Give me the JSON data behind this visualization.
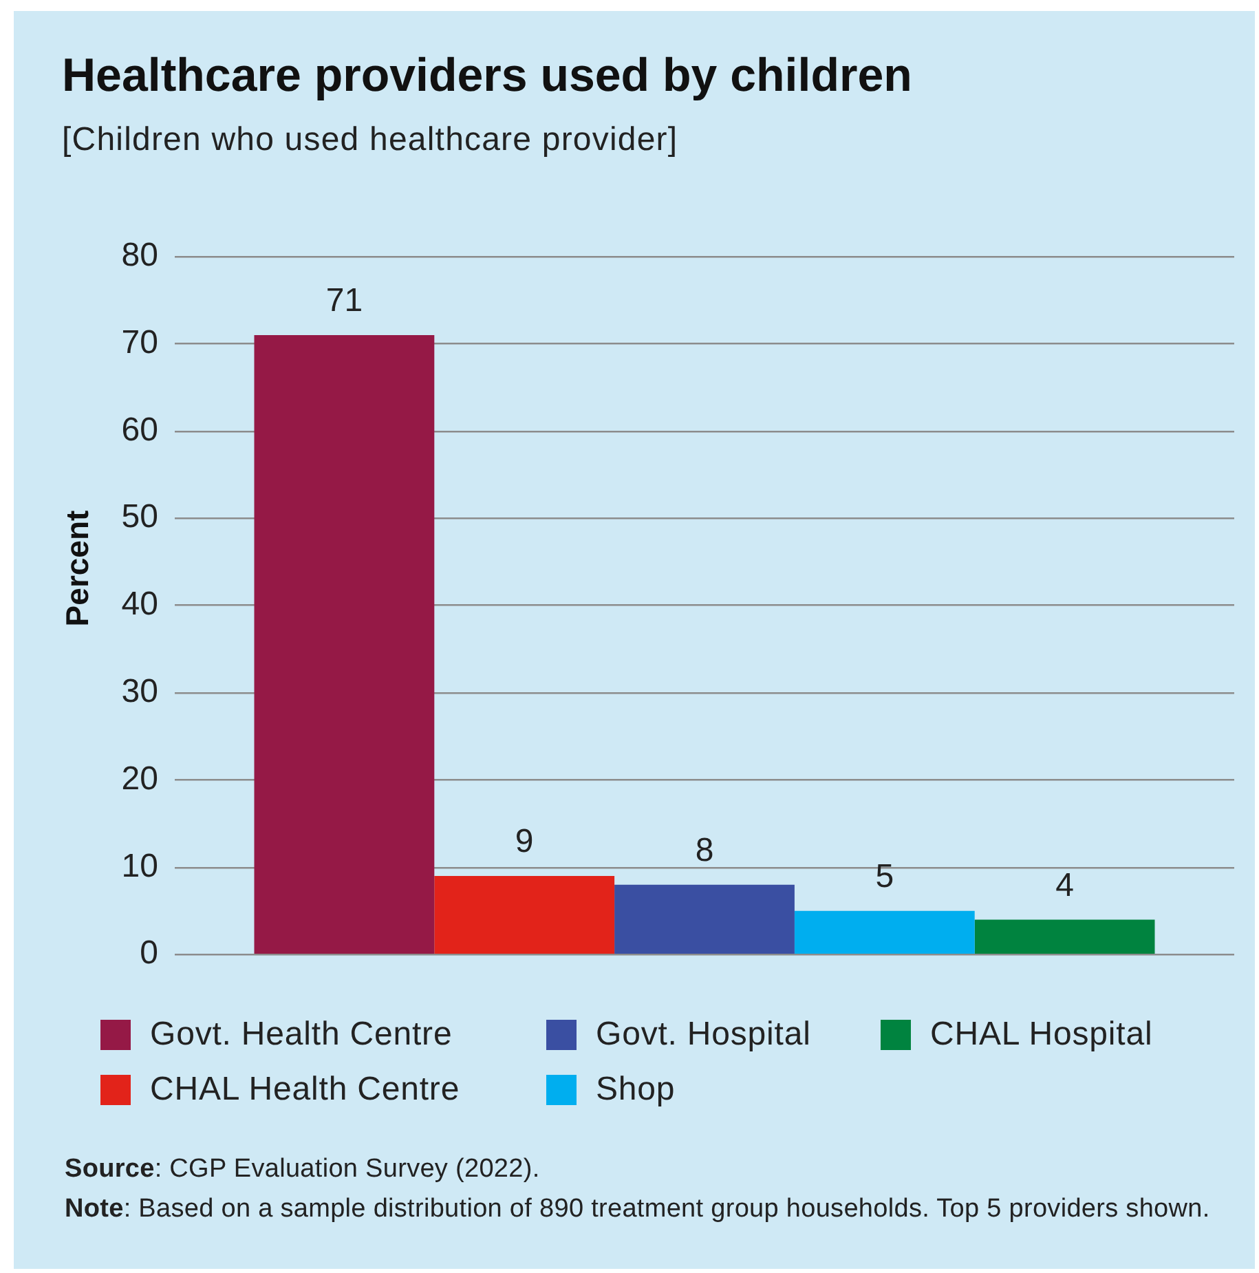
{
  "chart_data": {
    "type": "bar",
    "title": "Healthcare providers used by children",
    "subtitle": "[Children who used healthcare provider]",
    "ylabel": "Percent",
    "categories": [
      null
    ],
    "series": [
      {
        "name": "Govt. Health Centre",
        "color": "#951946",
        "values": [
          71
        ]
      },
      {
        "name": "CHAL Health Centre",
        "color": "#e2231a",
        "values": [
          9
        ]
      },
      {
        "name": "Govt. Hospital",
        "color": "#3a4fa2",
        "values": [
          8
        ]
      },
      {
        "name": "Shop",
        "color": "#00aeef",
        "values": [
          5
        ]
      },
      {
        "name": "CHAL Hospital",
        "color": "#00833f",
        "values": [
          4
        ]
      }
    ],
    "ylim": [
      0,
      80
    ],
    "yticks": [
      0,
      10,
      20,
      30,
      40,
      50,
      60,
      70,
      80
    ],
    "grid": "y",
    "legend": "bottom",
    "data_labels": true,
    "annotations": [
      "Source: CGP Evaluation Survey (2022).",
      "Note: Based on a sample distribution of 890 treatment group households. Top 5 providers shown."
    ]
  }
}
